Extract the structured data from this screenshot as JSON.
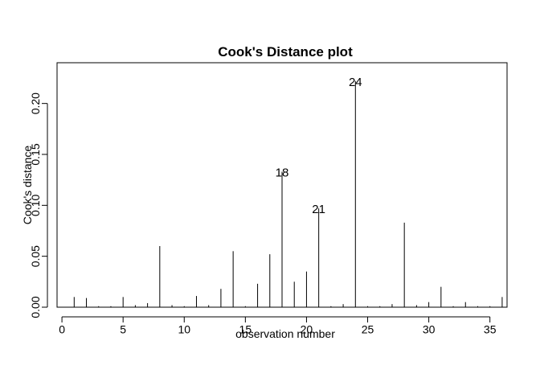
{
  "chart_data": {
    "type": "bar",
    "style": "needle",
    "title": "Cook's Distance plot",
    "xlabel": "observation number",
    "ylabel": "Cook's distance",
    "xlim": [
      -0.4,
      36.4
    ],
    "ylim": [
      0,
      0.24
    ],
    "xticks": [
      0,
      5,
      10,
      15,
      20,
      25,
      30,
      35
    ],
    "xtick_labels": [
      "0",
      "5",
      "10",
      "15",
      "20",
      "25",
      "30",
      "35"
    ],
    "yticks": [
      0.0,
      0.05,
      0.1,
      0.15,
      0.2
    ],
    "ytick_labels": [
      "0.00",
      "0.05",
      "0.10",
      "0.15",
      "0.20"
    ],
    "x": [
      1,
      2,
      3,
      4,
      5,
      6,
      7,
      8,
      9,
      10,
      11,
      12,
      13,
      14,
      15,
      16,
      17,
      18,
      19,
      20,
      21,
      22,
      23,
      24,
      25,
      26,
      27,
      28,
      29,
      30,
      31,
      32,
      33,
      34,
      35,
      36
    ],
    "values": [
      0.01,
      0.009,
      0.001,
      0.001,
      0.01,
      0.002,
      0.004,
      0.06,
      0.002,
      0.001,
      0.011,
      0.002,
      0.018,
      0.055,
      0.001,
      0.023,
      0.052,
      0.133,
      0.025,
      0.035,
      0.097,
      0.001,
      0.003,
      0.222,
      0.001,
      0.001,
      0.003,
      0.083,
      0.002,
      0.005,
      0.02,
      0.001,
      0.005,
      0.001,
      0.001,
      0.01
    ],
    "labeled_points": [
      {
        "x": 18,
        "label": "18"
      },
      {
        "x": 21,
        "label": "21"
      },
      {
        "x": 24,
        "label": "24"
      }
    ]
  }
}
